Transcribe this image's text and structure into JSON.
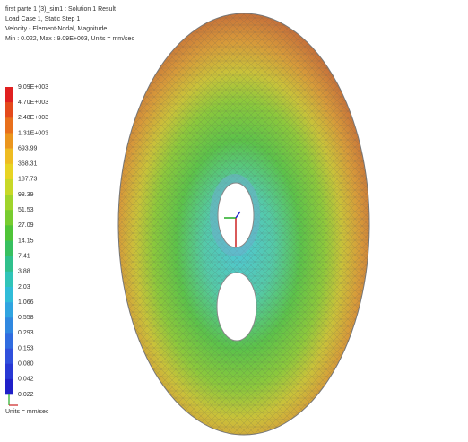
{
  "header": {
    "lines": [
      "first parte 1 (3)_sim1 : Solution 1 Result",
      "Load Case 1, Static Step 1",
      "Velocity - Element-Nodal, Magnitude",
      "Min : 0.022, Max : 9.09E+003, Units = mm/sec"
    ]
  },
  "legend": {
    "labels": [
      "9.09E+003",
      "4.70E+003",
      "2.48E+003",
      "1.31E+003",
      "693.99",
      "368.31",
      "187.73",
      "98.39",
      "51.53",
      "27.09",
      "14.15",
      "7.41",
      "3.88",
      "2.03",
      "1.066",
      "0.558",
      "0.293",
      "0.153",
      "0.080",
      "0.042",
      "0.022"
    ],
    "units": "Units = mm/sec"
  }
}
